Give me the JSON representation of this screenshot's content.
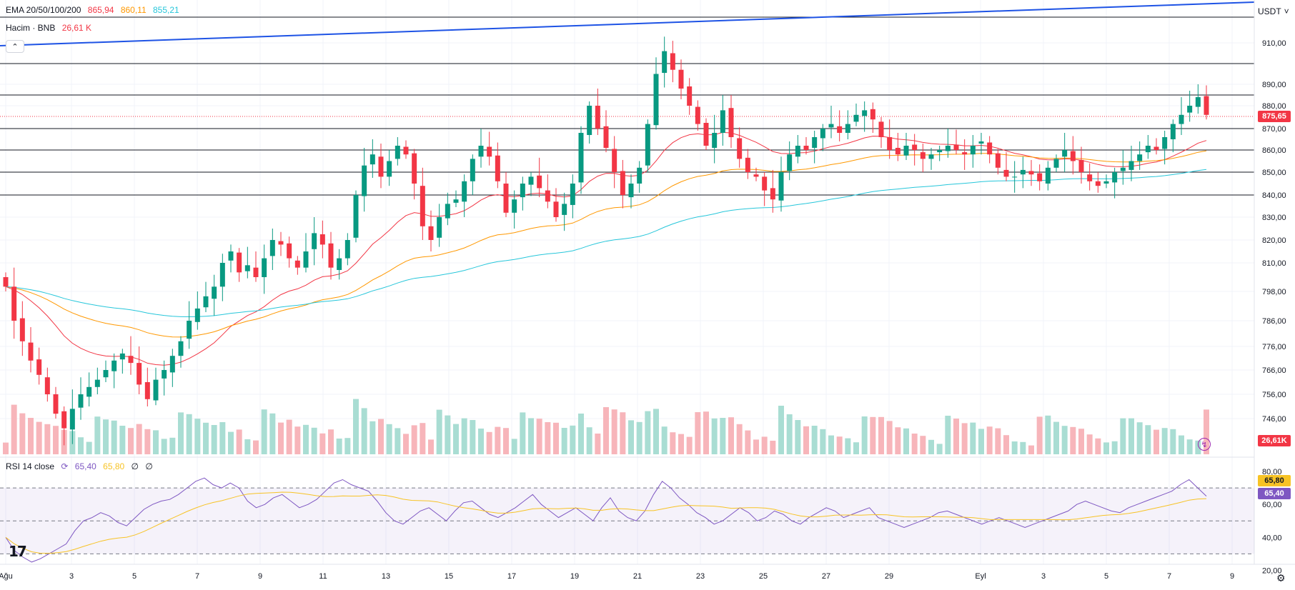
{
  "indicator_legend": {
    "ema": {
      "label": "EMA 20/50/100/200",
      "values": [
        "865,94",
        "860,11",
        "855,21"
      ],
      "colors": [
        "#f23645",
        "#ff9800",
        "#26c6da"
      ]
    },
    "volume": {
      "label": "Hacim · BNB",
      "value": "26,61 K",
      "color": "#f23645"
    },
    "rsi": {
      "label": "RSI 14 close",
      "values": [
        "65,40",
        "65,80",
        "∅",
        "∅"
      ],
      "colors": [
        "#7e57c2",
        "#f7c325",
        "#131722",
        "#131722"
      ]
    }
  },
  "currency": "USDT",
  "current_price_tag": "875,65",
  "volume_tag": "26,61K",
  "rsi_tags": [
    "65,80",
    "65,40"
  ],
  "colors": {
    "up": "#089981",
    "down": "#f23645",
    "ema20": "#f23645",
    "ema50": "#ff9800",
    "ema100": "#26c6da",
    "trend": "#1e53e5",
    "rsi": "#7e57c2",
    "rsi_ma": "#f7c325",
    "vol_up": "#a9ddd3",
    "vol_down": "#f7b5ba"
  },
  "chart_data": {
    "type": "candlestick",
    "price_axis": [
      "910,00",
      "890,00",
      "880,00",
      "870,00",
      "860,00",
      "850,00",
      "840,00",
      "830,00",
      "820,00",
      "810,00",
      "798,00",
      "786,00",
      "776,00",
      "766,00",
      "756,00",
      "746,00"
    ],
    "x_axis": [
      "Ağu",
      "3",
      "5",
      "7",
      "9",
      "11",
      "13",
      "15",
      "17",
      "19",
      "21",
      "23",
      "25",
      "27",
      "29",
      "Eyl",
      "3",
      "5",
      "7",
      "9"
    ],
    "horizontal_levels": [
      900,
      885,
      870,
      860,
      850,
      840
    ],
    "rsi_axis": [
      "80,00",
      "60,00",
      "40,00",
      "20,00"
    ],
    "rsi_levels": [
      70,
      50,
      30
    ],
    "close": [
      800,
      786,
      778,
      770,
      764,
      756,
      748,
      742,
      750,
      756,
      759,
      762,
      766,
      770,
      773,
      769,
      760,
      754,
      762,
      766,
      772,
      778,
      786,
      791,
      796,
      800,
      810,
      815,
      806,
      809,
      804,
      812,
      820,
      818,
      812,
      808,
      815,
      823,
      818,
      808,
      812,
      820,
      840,
      853,
      858,
      848,
      855,
      862,
      858,
      845,
      826,
      820,
      830,
      836,
      838,
      846,
      856,
      862,
      857,
      846,
      832,
      838,
      845,
      848,
      843,
      837,
      830,
      836,
      845,
      868,
      880,
      870,
      861,
      850,
      840,
      845,
      852,
      872,
      895,
      906,
      897,
      888,
      880,
      872,
      862,
      868,
      878,
      866,
      856,
      850,
      848,
      842,
      838,
      850,
      858,
      862,
      860,
      866,
      870,
      872,
      868,
      872,
      876,
      878,
      874,
      866,
      860,
      858,
      862,
      860,
      856,
      858,
      860,
      862,
      860,
      858,
      862,
      864,
      858,
      852,
      848,
      848,
      851,
      849,
      846,
      852,
      856,
      860,
      855,
      850,
      846,
      844,
      846,
      850,
      852,
      855,
      858,
      862,
      860,
      866,
      872,
      876,
      880,
      884,
      876
    ],
    "rsi": [
      40,
      32,
      28,
      25,
      27,
      30,
      33,
      36,
      44,
      50,
      52,
      55,
      53,
      49,
      47,
      52,
      57,
      60,
      62,
      63,
      66,
      70,
      74,
      76,
      72,
      70,
      73,
      70,
      62,
      58,
      60,
      64,
      66,
      62,
      58,
      60,
      63,
      68,
      73,
      75,
      72,
      70,
      68,
      62,
      55,
      50,
      48,
      52,
      56,
      58,
      54,
      50,
      56,
      61,
      62,
      58,
      54,
      52,
      55,
      58,
      62,
      66,
      60,
      56,
      52,
      55,
      58,
      54,
      50,
      58,
      64,
      56,
      52,
      50,
      56,
      66,
      74,
      70,
      64,
      60,
      55,
      52,
      48,
      50,
      54,
      58,
      55,
      50,
      52,
      56,
      54,
      50,
      48,
      52,
      55,
      58,
      56,
      52,
      54,
      56,
      58,
      52,
      50,
      48,
      46,
      48,
      50,
      52,
      55,
      56,
      54,
      52,
      50,
      48,
      50,
      52,
      50,
      48,
      46,
      48,
      50,
      52,
      54,
      56,
      60,
      62,
      60,
      58,
      56,
      55,
      58,
      60,
      62,
      64,
      66,
      68,
      72,
      75,
      70,
      65
    ]
  }
}
